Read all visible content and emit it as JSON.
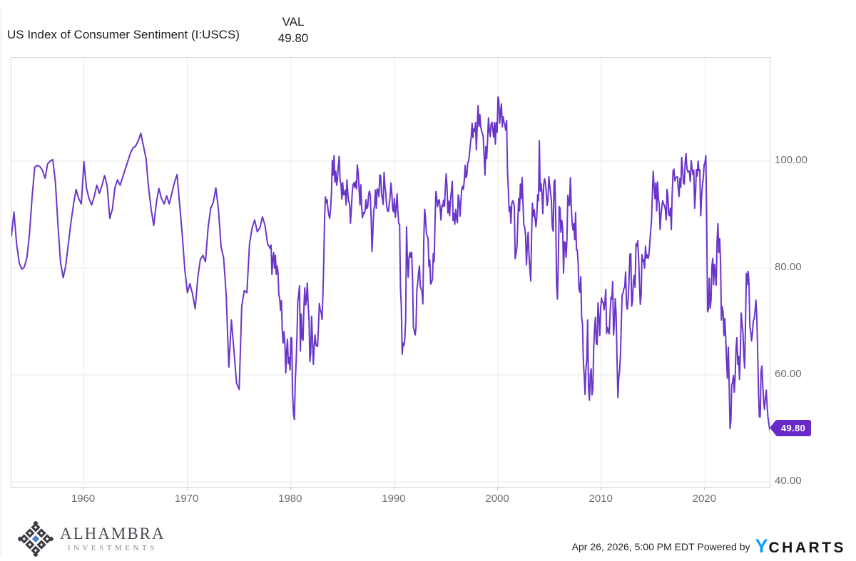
{
  "header": {
    "title": "US Index of Consumer Sentiment (I:USCS)",
    "value_column_label": "VAL",
    "value": "49.80"
  },
  "footer": {
    "logo_line1": "ALHAMBRA",
    "logo_line2": "INVESTMENTS",
    "timestamp": "Apr 26, 2026, 5:00 PM EDT",
    "powered_by": "Powered by",
    "brand_y": "Y",
    "brand_rest": "CHARTS"
  },
  "colors": {
    "line": "#6a36c9",
    "badge": "#6929c9",
    "grid": "#e9e9e9",
    "axis_text": "#6e6e6e",
    "ycharts_blue": "#0f9bf4",
    "alhambra_dark": "#3d3d43",
    "alhambra_blue": "#4a80d2"
  },
  "chart_data": {
    "type": "line",
    "title": "US Index of Consumer Sentiment (I:USCS)",
    "legend": "VAL",
    "last_value": 49.8,
    "last_value_label": "49.80",
    "line_color": "#6a36c9",
    "grid": true,
    "x_min": 1953.0,
    "x_max": 2026.25,
    "y_min": 39.1,
    "y_max": 119.33,
    "x_ticks": [
      1960,
      1970,
      1980,
      1990,
      2000,
      2010,
      2020
    ],
    "x_tick_labels": [
      "1960",
      "1970",
      "1980",
      "1990",
      "2000",
      "2010",
      "2020"
    ],
    "y_ticks": [
      100,
      80,
      60,
      40
    ],
    "y_tick_labels": [
      "100.00",
      "80.00",
      "60.00",
      "40.00"
    ],
    "series": [
      {
        "name": "US Index of Consumer Sentiment (quarterly)",
        "start_year": 1953.0,
        "step_years": 0.25,
        "values": [
          86,
          90.5,
          84.5,
          81,
          79.8,
          80.2,
          82,
          86.5,
          93.3,
          98.9,
          99.2,
          99,
          98.3,
          96.8,
          99.5,
          100,
          100.3,
          96,
          88,
          81,
          78.2,
          80.5,
          84.5,
          88.5,
          92,
          94.7,
          93,
          92,
          99.9,
          95,
          93,
          91.8,
          93.4,
          95.5,
          94,
          95.5,
          97.3,
          95.4,
          89.3,
          91,
          95,
          96.5,
          95.5,
          97,
          98.5,
          100,
          101.5,
          102.5,
          102.8,
          103.8,
          105.2,
          102.9,
          100.5,
          95,
          91,
          88,
          92.2,
          94.9,
          93,
          92,
          93.5,
          92,
          94,
          96,
          97.5,
          92,
          86.4,
          79.7,
          75.4,
          77.1,
          75.1,
          72.4,
          78.1,
          81.6,
          82.4,
          81.2,
          87.5,
          91.2,
          92.3,
          95,
          91,
          84,
          81.9,
          75,
          61.5,
          70.3,
          64.5,
          58.5,
          57.3,
          72.9,
          75.8,
          75.4,
          84.5,
          87.5,
          89,
          86.8,
          87.5,
          89.6,
          88,
          84.5
        ]
      },
      {
        "name": "US Index of Consumer Sentiment (monthly)",
        "start_year": 1978.0,
        "step_years": 0.0833333,
        "values": [
          83.7,
          84.3,
          78.8,
          81.6,
          82.9,
          80,
          82.4,
          78.8,
          80.4,
          79.3,
          75,
          74.3,
          72.1,
          73.9,
          68.4,
          66,
          68.1,
          65.8,
          60.4,
          64.5,
          66.7,
          62.1,
          63.3,
          61,
          67,
          66.9,
          56.5,
          52.7,
          51.7,
          58.7,
          62.3,
          67.3,
          73.7,
          75,
          76.7,
          64.5,
          71.4,
          66.9,
          66.5,
          72.4,
          76.3,
          73.1,
          74.1,
          77.2,
          73.1,
          70.3,
          62.5,
          64.3,
          71,
          66.5,
          62,
          65.5,
          67.5,
          65.7,
          65.4,
          65.4,
          69.3,
          73.4,
          72.1,
          71.9,
          70.4,
          74.6,
          80.8,
          89.1,
          93.3,
          92.2,
          92.8,
          90.9,
          89.9,
          89.3,
          91.1,
          94.2,
          100.1,
          97.4,
          101,
          96.1,
          98.1,
          95.5,
          96.6,
          99.1,
          100.9,
          96.3,
          95.7,
          92.9,
          96,
          93.7,
          93.7,
          94.6,
          91.8,
          96.5,
          94,
          92.4,
          92.1,
          88.4,
          90.9,
          93.9,
          95.6,
          95.9,
          95.1,
          96.2,
          94.8,
          99.3,
          97.7,
          94.9,
          91.8,
          95.6,
          91.4,
          89.4,
          90.4,
          90.2,
          90.8,
          92.8,
          91.1,
          91.5,
          93.7,
          94.4,
          93.6,
          89.3,
          83.1,
          86.8,
          90.8,
          91.6,
          94.6,
          91.2,
          94.8,
          94.7,
          93.4,
          97.4,
          97.3,
          94.1,
          93,
          91.9,
          97.9,
          95.3,
          94.1,
          91.5,
          90.7,
          90.6,
          92,
          93.4,
          95.9,
          93.9,
          91,
          90.5,
          93,
          89.5,
          91.3,
          93.9,
          90.6,
          88.3,
          88.2,
          76.4,
          72.8,
          63.9,
          66,
          65.5,
          66.8,
          70.4,
          87.7,
          81.8,
          78.3,
          82.1,
          82.9,
          82,
          83,
          78.3,
          69.1,
          68.2,
          67.5,
          68.8,
          76,
          77.2,
          79.2,
          80.4,
          76.6,
          76.1,
          75.6,
          73.3,
          85.3,
          91,
          89.3,
          86.6,
          85.9,
          85.6,
          80.3,
          81.5,
          77,
          77.3,
          77.9,
          82.7,
          81.2,
          88.2,
          94.3,
          93.2,
          91.5,
          92.6,
          92.8,
          91.2,
          89,
          91.7,
          91.5,
          92.7,
          91.6,
          95.1,
          97.6,
          95.1,
          90.3,
          92.5,
          89.8,
          92.7,
          94.4,
          96.2,
          88.9,
          90.2,
          88.2,
          91,
          89.3,
          88.5,
          93.7,
          92.7,
          89.7,
          92.4,
          94.7,
          95.3,
          94.7,
          96.5,
          99.2,
          96.9,
          97.4,
          99.7,
          100,
          101.4,
          103.2,
          104.5,
          107.1,
          104.4,
          106,
          105.6,
          107.2,
          102.1,
          106.6,
          110.4,
          106.5,
          108.7,
          106.5,
          105.6,
          105.2,
          104.4,
          100.9,
          97.4,
          102.7,
          100.5,
          103.9,
          108.1,
          105.7,
          104.6,
          106.8,
          107.3,
          106,
          104.5,
          107.2,
          103.2,
          107.2,
          105.4,
          112,
          111.3,
          107.1,
          109.2,
          110.7,
          106.4,
          108.3,
          107.3,
          106.8,
          105.8,
          107.6,
          98.4,
          94.7,
          90.6,
          91.5,
          88.4,
          92,
          92.6,
          92.4,
          91.5,
          81.8,
          82.7,
          83.9,
          88.8,
          93,
          90.7,
          95.7,
          93,
          96.9,
          92.4,
          88.1,
          87.6,
          86.1,
          80.6,
          84.2,
          86.7,
          82.4,
          79.9,
          77.6,
          86,
          92.1,
          89.7,
          90.9,
          89.3,
          87.7,
          89.6,
          93.7,
          92.6,
          103.8,
          94.4,
          95.8,
          94.2,
          90.2,
          95.6,
          96.7,
          95.9,
          94.2,
          91.7,
          92.8,
          97.1,
          95.5,
          94.1,
          92.6,
          87.7,
          86.9,
          96,
          96.5,
          89.1,
          76.9,
          74.2,
          81.6,
          91.5,
          91.2,
          86.7,
          88.9,
          87.4,
          79.1,
          84.9,
          84.7,
          82,
          85.4,
          93.6,
          92.1,
          91.7,
          96.9,
          91.3,
          88.4,
          87.1,
          88.3,
          85.3,
          90.4,
          83.4,
          83.4,
          80.9,
          76.1,
          75.5,
          78.4,
          70.8,
          69.5,
          62.6,
          59.8,
          56.4,
          61.2,
          63,
          70.3,
          57.6,
          55.3,
          60.1,
          61.2,
          56.3,
          57.3,
          65.1,
          68.7,
          70.8,
          66,
          65.7,
          73.5,
          70.6,
          67.4,
          72.5,
          74.4,
          73.6,
          73.6,
          72.2,
          73.6,
          76,
          67.8,
          68.9,
          68.2,
          67.7,
          71.6,
          74.5,
          74.2,
          77.5,
          67.5,
          69.8,
          74.3,
          71.5,
          63.7,
          55.8,
          59.5,
          60.8,
          63.7,
          69.9,
          75,
          75.3,
          76.2,
          76.4,
          79.3,
          73.2,
          72.3,
          74.3,
          78.3,
          82.6,
          82.7,
          72.9,
          73.8,
          77.6,
          78.6,
          76.4,
          84.5,
          84.1,
          85.1,
          82.1,
          77.5,
          73.2,
          75.1,
          82.5,
          81.2,
          81.6,
          80,
          84.1,
          81.9,
          82.5,
          81.8,
          82.5,
          84.6,
          86.9,
          88.8,
          93.6,
          98.1,
          95.4,
          93,
          95.9,
          90.7,
          96.1,
          93.1,
          91.9,
          87.2,
          90,
          91.3,
          92.6,
          92,
          91.7,
          91,
          89,
          94.7,
          93.5,
          90,
          89.8,
          91.2,
          87.2,
          93.8,
          98.2,
          98.5,
          96.3,
          96.9,
          97,
          97.1,
          95,
          93.4,
          96.8,
          95.1,
          100.7,
          98.5,
          95.9,
          95.7,
          99.7,
          101.4,
          98.8,
          98,
          98.2,
          97.9,
          96.2,
          100.1,
          98.6,
          97.5,
          98.3,
          91.2,
          93.8,
          98.4,
          97.2,
          100,
          98.2,
          98.4,
          89.8,
          93.2,
          95.5,
          96.8,
          99.3,
          99.8,
          101,
          89.1,
          71.8,
          72.3,
          78.1,
          72.5,
          74.1,
          80.4,
          81.8,
          76.9,
          80.7,
          79,
          76.8,
          84.9,
          88.3,
          82.9,
          85.5,
          81.2,
          70.3,
          72.8,
          71.7,
          67.4,
          70.6,
          67.2,
          62.8,
          59.4,
          65.2,
          58.4,
          50,
          51.5,
          58.2,
          58.6,
          59.9,
          56.8,
          59.7,
          64.9,
          67,
          62,
          63.5,
          59.2,
          64.4,
          71.6,
          69.5,
          68.1,
          63.8,
          61.3,
          69.7,
          79,
          76.9,
          79.4,
          77.2,
          69.1,
          68.2,
          66.4,
          67.9,
          70.1,
          70.5,
          71.8,
          74,
          71.1,
          64.7,
          57,
          52.2,
          52.2,
          60.7,
          61.7,
          58.2,
          55.1,
          53.6,
          55.9,
          57.2,
          54.3,
          52.1,
          50.9,
          49.8
        ]
      }
    ]
  }
}
